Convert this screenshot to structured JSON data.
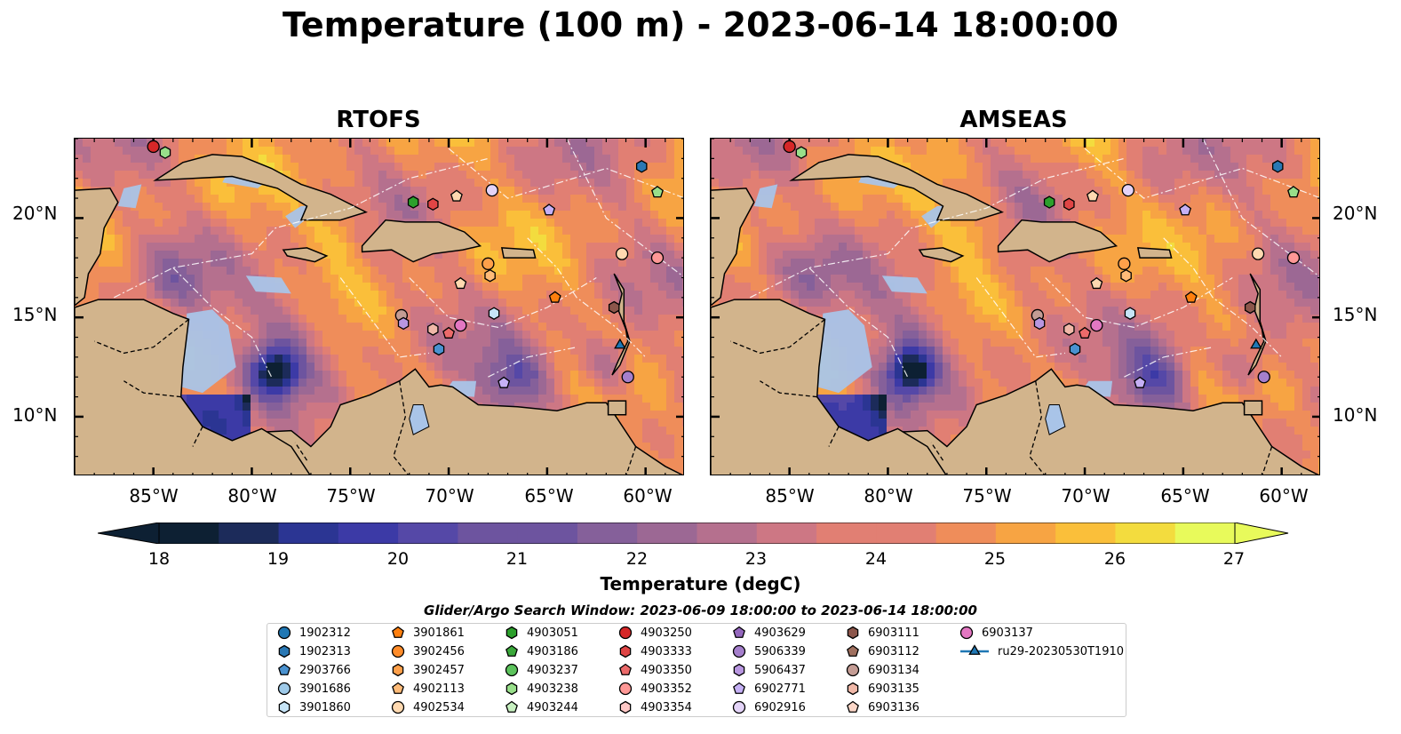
{
  "title": "Temperature (100 m) - 2023-06-14 18:00:00",
  "panels": [
    {
      "title": "RTOFS"
    },
    {
      "title": "AMSEAS"
    }
  ],
  "axes": {
    "lon_ticks": [
      "85°W",
      "80°W",
      "75°W",
      "70°W",
      "65°W",
      "60°W"
    ],
    "lat_ticks": [
      "20°N",
      "15°N",
      "10°N"
    ],
    "lon_range": [
      -89,
      -58
    ],
    "lat_range": [
      7,
      24
    ]
  },
  "colorbar": {
    "label": "Temperature (degC)",
    "ticks": [
      "18",
      "19",
      "20",
      "21",
      "22",
      "23",
      "24",
      "25",
      "26",
      "27"
    ],
    "range": [
      18,
      27
    ],
    "extend": "both",
    "colormap": "thermal",
    "colors": [
      "#0d2033",
      "#1c2b5a",
      "#2b3593",
      "#3c3aa6",
      "#5548a7",
      "#6d549f",
      "#85609a",
      "#9c6894",
      "#b5708e",
      "#cd7784",
      "#e17f73",
      "#ef8d5a",
      "#f7a443",
      "#fabf3a",
      "#f3dc3e",
      "#e8fa5b"
    ]
  },
  "legend": {
    "title": "Glider/Argo Search Window: 2023-06-09 18:00:00 to 2023-06-14 18:00:00",
    "items": [
      {
        "label": "1902312",
        "marker": "circle",
        "color": "#1f77b4"
      },
      {
        "label": "1902313",
        "marker": "hexagon",
        "color": "#2a78b4"
      },
      {
        "label": "2903766",
        "marker": "pentagon",
        "color": "#4a92d0"
      },
      {
        "label": "3901686",
        "marker": "circle",
        "color": "#9ecae9"
      },
      {
        "label": "3901860",
        "marker": "hexagon",
        "color": "#c6e4f7"
      },
      {
        "label": "3901861",
        "marker": "pentagon",
        "color": "#ff7f0e"
      },
      {
        "label": "3902456",
        "marker": "circle",
        "color": "#ff8c2a"
      },
      {
        "label": "3902457",
        "marker": "hexagon",
        "color": "#ffa04a"
      },
      {
        "label": "4902113",
        "marker": "pentagon",
        "color": "#ffbb78"
      },
      {
        "label": "4902534",
        "marker": "circle",
        "color": "#ffd9b0"
      },
      {
        "label": "4903051",
        "marker": "hexagon",
        "color": "#2ca02c"
      },
      {
        "label": "4903186",
        "marker": "pentagon",
        "color": "#3aa83a"
      },
      {
        "label": "4903237",
        "marker": "circle",
        "color": "#5cc35c"
      },
      {
        "label": "4903238",
        "marker": "hexagon",
        "color": "#98df8a"
      },
      {
        "label": "4903244",
        "marker": "pentagon",
        "color": "#c7f0c0"
      },
      {
        "label": "4903250",
        "marker": "circle",
        "color": "#d62728"
      },
      {
        "label": "4903333",
        "marker": "hexagon",
        "color": "#e04545"
      },
      {
        "label": "4903350",
        "marker": "pentagon",
        "color": "#ec6a6a"
      },
      {
        "label": "4903352",
        "marker": "circle",
        "color": "#ff9896"
      },
      {
        "label": "4903354",
        "marker": "hexagon",
        "color": "#ffc8c6"
      },
      {
        "label": "4903629",
        "marker": "pentagon",
        "color": "#9467bd"
      },
      {
        "label": "5906339",
        "marker": "circle",
        "color": "#a57fcc"
      },
      {
        "label": "5906437",
        "marker": "hexagon",
        "color": "#b896e0"
      },
      {
        "label": "6902771",
        "marker": "pentagon",
        "color": "#c5b0f5"
      },
      {
        "label": "6902916",
        "marker": "circle",
        "color": "#e3d3f7"
      },
      {
        "label": "6903111",
        "marker": "hexagon",
        "color": "#8c564b"
      },
      {
        "label": "6903112",
        "marker": "pentagon",
        "color": "#a0705f"
      },
      {
        "label": "6903134",
        "marker": "circle",
        "color": "#c49c94"
      },
      {
        "label": "6903135",
        "marker": "hexagon",
        "color": "#f0b8a8"
      },
      {
        "label": "6903136",
        "marker": "pentagon",
        "color": "#fcd7c8"
      },
      {
        "label": "6903137",
        "marker": "circle",
        "color": "#e377c2"
      },
      {
        "label": "ru29-20230530T1910",
        "marker": "triangle-line",
        "color": "#1f77b4"
      }
    ]
  },
  "observations": [
    {
      "lon": -85.0,
      "lat": 23.6,
      "marker": "circle",
      "color": "#d62728"
    },
    {
      "lon": -84.4,
      "lat": 23.3,
      "marker": "hexagon",
      "color": "#98df8a"
    },
    {
      "lon": -60.2,
      "lat": 22.6,
      "marker": "hexagon",
      "color": "#2a78b4"
    },
    {
      "lon": -59.4,
      "lat": 21.3,
      "marker": "pentagon",
      "color": "#98df8a"
    },
    {
      "lon": -67.8,
      "lat": 21.4,
      "marker": "circle",
      "color": "#e3d3f7"
    },
    {
      "lon": -69.6,
      "lat": 21.1,
      "marker": "pentagon",
      "color": "#ffd9b0"
    },
    {
      "lon": -71.8,
      "lat": 20.8,
      "marker": "hexagon",
      "color": "#2ca02c"
    },
    {
      "lon": -70.8,
      "lat": 20.7,
      "marker": "hexagon",
      "color": "#e04545"
    },
    {
      "lon": -64.9,
      "lat": 20.4,
      "marker": "pentagon",
      "color": "#c5b0f5"
    },
    {
      "lon": -61.2,
      "lat": 18.2,
      "marker": "circle",
      "color": "#ffd9b0"
    },
    {
      "lon": -59.4,
      "lat": 18.0,
      "marker": "circle",
      "color": "#ff9896"
    },
    {
      "lon": -68.0,
      "lat": 17.7,
      "marker": "circle",
      "color": "#ffa04a"
    },
    {
      "lon": -67.9,
      "lat": 17.1,
      "marker": "hexagon",
      "color": "#ffbb78"
    },
    {
      "lon": -69.4,
      "lat": 16.7,
      "marker": "pentagon",
      "color": "#ffd9b0"
    },
    {
      "lon": -64.6,
      "lat": 16.0,
      "marker": "pentagon",
      "color": "#ff7f0e"
    },
    {
      "lon": -61.6,
      "lat": 15.5,
      "marker": "hexagon",
      "color": "#8c564b"
    },
    {
      "lon": -67.7,
      "lat": 15.2,
      "marker": "hexagon",
      "color": "#c6e4f7"
    },
    {
      "lon": -72.4,
      "lat": 15.1,
      "marker": "circle",
      "color": "#c49c94"
    },
    {
      "lon": -72.3,
      "lat": 14.7,
      "marker": "hexagon",
      "color": "#b896e0"
    },
    {
      "lon": -69.4,
      "lat": 14.6,
      "marker": "circle",
      "color": "#e377c2"
    },
    {
      "lon": -70.8,
      "lat": 14.4,
      "marker": "hexagon",
      "color": "#f0b8a8"
    },
    {
      "lon": -70.0,
      "lat": 14.2,
      "marker": "pentagon",
      "color": "#ec6a6a"
    },
    {
      "lon": -70.5,
      "lat": 13.4,
      "marker": "hexagon",
      "color": "#4a92d0"
    },
    {
      "lon": -67.2,
      "lat": 11.7,
      "marker": "pentagon",
      "color": "#c5b0f5"
    },
    {
      "lon": -60.9,
      "lat": 12.0,
      "marker": "circle",
      "color": "#a57fcc"
    },
    {
      "lon": -61.3,
      "lat": 13.6,
      "marker": "triangle",
      "color": "#1f77b4"
    }
  ]
}
